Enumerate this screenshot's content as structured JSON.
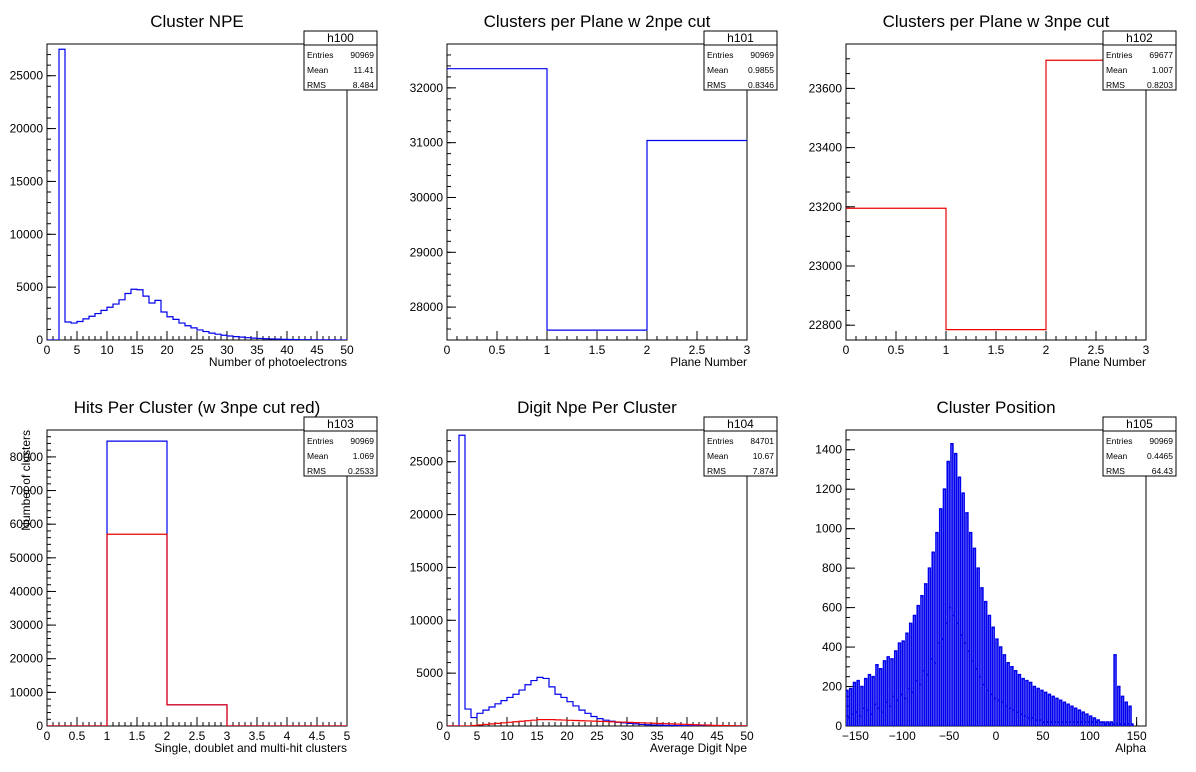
{
  "chart_data": [
    {
      "id": "c1",
      "type": "histogram",
      "title": "Cluster NPE",
      "xlabel": "Number of photoelectrons",
      "ylabel": "",
      "xlim": [
        0,
        50
      ],
      "ylim": [
        0,
        28000
      ],
      "xticks": [
        0,
        5,
        10,
        15,
        20,
        25,
        30,
        35,
        40,
        45,
        50
      ],
      "xtick_labels": [
        "0",
        "5",
        "10",
        "15",
        "20",
        "25",
        "30",
        "35",
        "40",
        "45",
        "50"
      ],
      "yticks": [
        0,
        5000,
        10000,
        15000,
        20000,
        25000
      ],
      "ytick_labels": [
        "0",
        "5000",
        "10000",
        "15000",
        "20000",
        "25000"
      ],
      "xminor": 1,
      "yminor": 1000,
      "stats": {
        "name": "h100",
        "rows": [
          [
            "Entries",
            "90969"
          ],
          [
            "Mean",
            "11.41"
          ],
          [
            "RMS",
            "8.484"
          ]
        ]
      },
      "series": [
        {
          "color": "#0000ee",
          "bin_width": 1,
          "x0": 0,
          "values": [
            0,
            0,
            27500,
            1700,
            1600,
            1750,
            2000,
            2250,
            2500,
            2800,
            3100,
            3400,
            3800,
            4400,
            4800,
            4750,
            4150,
            3500,
            3750,
            2650,
            2200,
            1950,
            1600,
            1350,
            1150,
            950,
            800,
            650,
            550,
            450,
            380,
            320,
            270,
            220,
            180,
            150,
            120,
            100,
            80,
            65,
            50,
            40,
            30,
            25,
            20,
            15,
            12,
            10,
            8,
            6
          ]
        }
      ]
    },
    {
      "id": "c2",
      "type": "histogram",
      "title": "Clusters per Plane w 2npe cut",
      "xlabel": "Plane Number",
      "ylabel": "",
      "xlim": [
        0,
        3
      ],
      "ylim": [
        27400,
        32800
      ],
      "xticks": [
        0,
        0.5,
        1,
        1.5,
        2,
        2.5,
        3
      ],
      "xtick_labels": [
        "0",
        "0.5",
        "1",
        "1.5",
        "2",
        "2.5",
        "3"
      ],
      "yticks": [
        28000,
        29000,
        30000,
        31000,
        32000
      ],
      "ytick_labels": [
        "28000",
        "29000",
        "30000",
        "31000",
        "32000"
      ],
      "xminor": 0.1,
      "yminor": 200,
      "stats": {
        "name": "h101",
        "rows": [
          [
            "Entries",
            "90969"
          ],
          [
            "Mean",
            "0.9855"
          ],
          [
            "RMS",
            "0.8346"
          ]
        ]
      },
      "series": [
        {
          "color": "#0000ee",
          "bin_width": 1,
          "x0": 0,
          "values": [
            32350,
            27580,
            31040
          ]
        }
      ]
    },
    {
      "id": "c3",
      "type": "histogram",
      "title": "Clusters per Plane w 3npe cut",
      "xlabel": "Plane Number",
      "ylabel": "",
      "xlim": [
        0,
        3
      ],
      "ylim": [
        22750,
        23750
      ],
      "xticks": [
        0,
        0.5,
        1,
        1.5,
        2,
        2.5,
        3
      ],
      "xtick_labels": [
        "0",
        "0.5",
        "1",
        "1.5",
        "2",
        "2.5",
        "3"
      ],
      "yticks": [
        22800,
        23000,
        23200,
        23400,
        23600
      ],
      "ytick_labels": [
        "22800",
        "23000",
        "23200",
        "23400",
        "23600"
      ],
      "xminor": 0.1,
      "yminor": 50,
      "stats": {
        "name": "h102",
        "rows": [
          [
            "Entries",
            "69677"
          ],
          [
            "Mean",
            "1.007"
          ],
          [
            "RMS",
            "0.8203"
          ]
        ]
      },
      "series": [
        {
          "color": "#ee0000",
          "bin_width": 1,
          "x0": 0,
          "values": [
            23195,
            22785,
            23695
          ]
        }
      ]
    },
    {
      "id": "c4",
      "type": "histogram",
      "title": "Hits Per Cluster (w 3npe cut red)",
      "xlabel": "Single, doublet and multi-hit clusters",
      "ylabel": "Number of clusters",
      "xlim": [
        0,
        5
      ],
      "ylim": [
        0,
        88000
      ],
      "xticks": [
        0,
        0.5,
        1,
        1.5,
        2,
        2.5,
        3,
        3.5,
        4,
        4.5,
        5
      ],
      "xtick_labels": [
        "0",
        "0.5",
        "1",
        "1.5",
        "2",
        "2.5",
        "3",
        "3.5",
        "4",
        "4.5",
        "5"
      ],
      "yticks": [
        0,
        10000,
        20000,
        30000,
        40000,
        50000,
        60000,
        70000,
        80000
      ],
      "ytick_labels": [
        "0",
        "10000",
        "20000",
        "30000",
        "40000",
        "50000",
        "60000",
        "70000",
        "80000"
      ],
      "xminor": 0.1,
      "yminor": 2000,
      "stats": {
        "name": "h103",
        "rows": [
          [
            "Entries",
            "90969"
          ],
          [
            "Mean",
            "1.069"
          ],
          [
            "RMS",
            "0.2533"
          ]
        ]
      },
      "series": [
        {
          "color": "#0000ee",
          "bin_width": 1,
          "x0": 0,
          "values": [
            0,
            84700,
            6300,
            0,
            0
          ]
        },
        {
          "color": "#ee0000",
          "bin_width": 1,
          "x0": 0,
          "values": [
            0,
            57000,
            6300,
            0,
            0
          ]
        }
      ]
    },
    {
      "id": "c5",
      "type": "histogram",
      "title": "Digit Npe Per Cluster",
      "xlabel": "Average Digit Npe",
      "ylabel": "",
      "xlim": [
        0,
        50
      ],
      "ylim": [
        0,
        28000
      ],
      "xticks": [
        0,
        5,
        10,
        15,
        20,
        25,
        30,
        35,
        40,
        45,
        50
      ],
      "xtick_labels": [
        "0",
        "5",
        "10",
        "15",
        "20",
        "25",
        "30",
        "35",
        "40",
        "45",
        "50"
      ],
      "yticks": [
        0,
        5000,
        10000,
        15000,
        20000,
        25000
      ],
      "ytick_labels": [
        "0",
        "5000",
        "10000",
        "15000",
        "20000",
        "25000"
      ],
      "xminor": 1,
      "yminor": 1000,
      "stats": {
        "name": "h104",
        "rows": [
          [
            "Entries",
            "84701"
          ],
          [
            "Mean",
            "10.67"
          ],
          [
            "RMS",
            "7.874"
          ]
        ]
      },
      "series": [
        {
          "color": "#0000ee",
          "bin_width": 1,
          "x0": 0,
          "values": [
            0,
            0,
            27500,
            1600,
            800,
            1200,
            1500,
            1800,
            2100,
            2400,
            2700,
            3000,
            3400,
            3900,
            4300,
            4600,
            4500,
            3700,
            3000,
            2700,
            2300,
            1900,
            1500,
            1200,
            900,
            700,
            550,
            450,
            350,
            300,
            250,
            200,
            150,
            120,
            100,
            80,
            60,
            50,
            40,
            30,
            25,
            20,
            15,
            12,
            10,
            8,
            6,
            5,
            4,
            3
          ]
        },
        {
          "color": "#ee0000",
          "bin_width": 1,
          "x0": 0,
          "values": [
            0,
            0,
            0,
            0,
            50,
            100,
            150,
            200,
            250,
            300,
            350,
            400,
            450,
            500,
            550,
            600,
            600,
            600,
            580,
            560,
            540,
            520,
            500,
            480,
            460,
            440,
            420,
            400,
            380,
            360,
            340,
            320,
            300,
            280,
            260,
            240,
            220,
            200,
            180,
            160,
            140,
            120,
            100,
            80,
            60,
            50,
            40,
            30,
            20,
            10
          ]
        }
      ]
    },
    {
      "id": "c6",
      "type": "histogram",
      "title": "Cluster Position",
      "xlabel": "Alpha",
      "ylabel": "",
      "xlim": [
        -160,
        160
      ],
      "ylim": [
        0,
        1500
      ],
      "xticks": [
        -150,
        -100,
        -50,
        0,
        50,
        100,
        150
      ],
      "xtick_labels": [
        "−150",
        "−100",
        "−50",
        "0",
        "50",
        "100",
        "150"
      ],
      "yticks": [
        0,
        200,
        400,
        600,
        800,
        1000,
        1200,
        1400
      ],
      "ytick_labels": [
        "0",
        "200",
        "400",
        "600",
        "800",
        "1000",
        "1200",
        "1400"
      ],
      "xminor": 10,
      "yminor": 50,
      "stats": {
        "name": "h105",
        "rows": [
          [
            "Entries",
            "90969"
          ],
          [
            "Mean",
            "0.4465"
          ],
          [
            "RMS",
            "64.43"
          ]
        ]
      },
      "series": [
        {
          "color": "#0000ee",
          "bin_width": 2,
          "x0": -160,
          "style": "comb",
          "values": [
            180,
            40,
            190,
            60,
            220,
            70,
            230,
            50,
            200,
            90,
            240,
            80,
            260,
            60,
            250,
            110,
            310,
            90,
            290,
            70,
            330,
            120,
            350,
            100,
            340,
            150,
            380,
            130,
            420,
            160,
            430,
            140,
            470,
            190,
            520,
            170,
            560,
            230,
            610,
            210,
            660,
            280,
            720,
            260,
            800,
            340,
            880,
            320,
            980,
            420,
            1100,
            440,
            1200,
            520,
            1340,
            600,
            1430,
            560,
            1380,
            520,
            1260,
            460,
            1180,
            420,
            1080,
            380,
            980,
            330,
            900,
            290,
            800,
            250,
            700,
            210,
            630,
            180,
            560,
            160,
            500,
            140,
            440,
            130,
            400,
            120,
            360,
            100,
            320,
            90,
            300,
            80,
            280,
            70,
            260,
            60,
            240,
            50,
            230,
            40,
            220,
            40,
            200,
            30,
            190,
            30,
            180,
            20,
            170,
            20,
            160,
            20,
            150,
            20,
            140,
            20,
            130,
            20,
            120,
            20,
            110,
            20,
            100,
            20,
            90,
            20,
            80,
            20,
            70,
            20,
            60,
            20,
            50,
            20,
            40,
            20,
            30,
            20,
            20,
            20,
            10,
            20,
            10,
            20,
            10,
            360,
            10,
            200,
            10,
            150,
            10,
            120,
            10,
            100,
            10
          ]
        }
      ]
    }
  ]
}
